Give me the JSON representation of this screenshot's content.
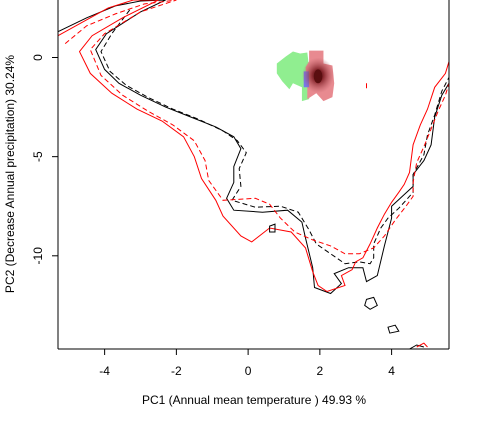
{
  "chart_data": {
    "type": "contour-density",
    "xlabel": "PC1 (Annual mean temperature ) 49.93 %",
    "ylabel": "PC2 (Decrease Annual precipitation) 30.24%",
    "xlim": [
      -5.3,
      5.6
    ],
    "ylim": [
      -14.7,
      2.9
    ],
    "xticks": [
      -4,
      -2,
      0,
      2,
      4
    ],
    "yticks": [
      0,
      -5,
      -10
    ],
    "colors": {
      "black": "#000000",
      "red": "#ff0000",
      "green_patch": "#90ee90",
      "red_patch": "#e88a90",
      "red_dark": "#5a0e10",
      "blue_patch": "#7777ee"
    },
    "series": [
      {
        "style": "solid",
        "color": "black",
        "points": [
          [
            -5.3,
            1.3
          ],
          [
            -4.5,
            2.0
          ],
          [
            -3.7,
            2.6
          ],
          [
            -3.0,
            2.85
          ],
          [
            -2.3,
            2.9
          ],
          [
            -3.0,
            2.3
          ],
          [
            -3.95,
            1.2
          ],
          [
            -4.25,
            0.4
          ],
          [
            -4.0,
            -0.6
          ],
          [
            -3.6,
            -1.3
          ],
          [
            -3.0,
            -1.9
          ],
          [
            -2.3,
            -2.5
          ],
          [
            -1.6,
            -3.0
          ],
          [
            -0.9,
            -3.5
          ],
          [
            -0.4,
            -4.0
          ],
          [
            -0.2,
            -4.6
          ],
          [
            -0.4,
            -5.5
          ],
          [
            -0.4,
            -6.3
          ],
          [
            -0.6,
            -7.1
          ],
          [
            -0.4,
            -7.7
          ],
          [
            0.4,
            -7.8
          ],
          [
            1.1,
            -7.7
          ],
          [
            1.5,
            -8.3
          ],
          [
            1.6,
            -9.1
          ],
          [
            1.8,
            -10.6
          ],
          [
            1.85,
            -11.6
          ],
          [
            2.3,
            -11.9
          ],
          [
            2.6,
            -11.4
          ],
          [
            2.4,
            -10.9
          ],
          [
            2.8,
            -10.6
          ],
          [
            3.2,
            -10.6
          ],
          [
            3.3,
            -11.3
          ],
          [
            3.6,
            -11.0
          ],
          [
            3.8,
            -9.5
          ],
          [
            4.0,
            -8.1
          ],
          [
            4.0,
            -7.5
          ],
          [
            4.3,
            -7.0
          ],
          [
            4.6,
            -6.5
          ],
          [
            4.6,
            -5.9
          ],
          [
            4.9,
            -5.2
          ],
          [
            5.1,
            -4.4
          ],
          [
            5.2,
            -3.0
          ],
          [
            5.4,
            -1.9
          ],
          [
            5.6,
            -1.3
          ]
        ]
      },
      {
        "style": "dashed",
        "color": "black",
        "points": [
          [
            -3.3,
            2.4
          ],
          [
            -3.8,
            1.2
          ],
          [
            -4.1,
            0.3
          ],
          [
            -3.85,
            -0.7
          ],
          [
            -3.4,
            -1.4
          ],
          [
            -2.8,
            -2.0
          ],
          [
            -2.1,
            -2.6
          ],
          [
            -1.4,
            -3.1
          ],
          [
            -0.7,
            -3.7
          ],
          [
            -0.3,
            -4.2
          ],
          [
            -0.05,
            -4.8
          ],
          [
            -0.25,
            -5.6
          ],
          [
            -0.2,
            -6.5
          ],
          [
            -0.45,
            -7.2
          ],
          [
            0.2,
            -7.55
          ],
          [
            0.9,
            -7.5
          ],
          [
            1.4,
            -7.8
          ],
          [
            1.7,
            -8.7
          ],
          [
            1.9,
            -9.4
          ],
          [
            2.3,
            -9.9
          ],
          [
            2.7,
            -10.4
          ],
          [
            3.1,
            -10.3
          ],
          [
            3.4,
            -10.4
          ],
          [
            3.5,
            -10.1
          ],
          [
            3.5,
            -9.4
          ],
          [
            3.7,
            -8.6
          ],
          [
            3.9,
            -8.1
          ],
          [
            4.2,
            -7.6
          ],
          [
            4.4,
            -7.2
          ],
          [
            4.6,
            -6.8
          ],
          [
            4.6,
            -5.9
          ],
          [
            4.9,
            -4.9
          ],
          [
            5.0,
            -3.9
          ],
          [
            5.2,
            -2.9
          ],
          [
            5.4,
            -1.7
          ],
          [
            5.6,
            -1.0
          ]
        ]
      },
      {
        "style": "solid",
        "color": "red",
        "points": [
          [
            -5.3,
            1.1
          ],
          [
            -4.5,
            1.9
          ],
          [
            -3.9,
            2.5
          ],
          [
            -3.2,
            2.9
          ],
          [
            -2.5,
            2.9
          ],
          [
            -3.5,
            2.0
          ],
          [
            -4.35,
            1.1
          ],
          [
            -4.7,
            0.3
          ],
          [
            -4.4,
            -0.8
          ],
          [
            -3.8,
            -1.8
          ],
          [
            -3.1,
            -2.6
          ],
          [
            -2.4,
            -3.2
          ],
          [
            -1.8,
            -4.0
          ],
          [
            -1.5,
            -5.0
          ],
          [
            -1.3,
            -6.1
          ],
          [
            -0.9,
            -7.2
          ],
          [
            -0.7,
            -8.0
          ],
          [
            -0.2,
            -9.0
          ],
          [
            0.1,
            -9.3
          ],
          [
            0.6,
            -8.6
          ],
          [
            1.2,
            -8.8
          ],
          [
            1.6,
            -9.6
          ],
          [
            1.8,
            -10.8
          ],
          [
            1.95,
            -11.5
          ],
          [
            2.2,
            -11.8
          ],
          [
            2.7,
            -11.5
          ],
          [
            2.6,
            -11.0
          ],
          [
            2.9,
            -10.7
          ],
          [
            3.0,
            -10.3
          ],
          [
            3.2,
            -10.1
          ],
          [
            3.4,
            -9.4
          ],
          [
            3.6,
            -8.6
          ],
          [
            3.8,
            -7.9
          ],
          [
            4.0,
            -7.3
          ],
          [
            4.2,
            -6.8
          ],
          [
            4.35,
            -6.4
          ],
          [
            4.5,
            -5.8
          ],
          [
            4.6,
            -4.4
          ],
          [
            4.8,
            -3.4
          ],
          [
            5.0,
            -2.6
          ],
          [
            5.2,
            -1.5
          ],
          [
            5.5,
            -0.8
          ],
          [
            5.6,
            -0.2
          ]
        ]
      },
      {
        "style": "dashed",
        "color": "red",
        "points": [
          [
            -5.1,
            0.7
          ],
          [
            -4.5,
            1.6
          ],
          [
            -3.7,
            2.2
          ],
          [
            -2.9,
            2.7
          ],
          [
            -2.0,
            2.9
          ],
          [
            -3.0,
            2.3
          ],
          [
            -4.0,
            1.2
          ],
          [
            -4.4,
            0.4
          ],
          [
            -4.1,
            -0.9
          ],
          [
            -3.5,
            -1.9
          ],
          [
            -2.8,
            -2.7
          ],
          [
            -2.1,
            -3.4
          ],
          [
            -1.5,
            -4.2
          ],
          [
            -1.2,
            -5.2
          ],
          [
            -1.1,
            -6.2
          ],
          [
            -0.7,
            -7.2
          ],
          [
            0.2,
            -7.1
          ],
          [
            0.6,
            -7.4
          ],
          [
            0.9,
            -8.1
          ],
          [
            1.3,
            -8.8
          ],
          [
            1.8,
            -9.2
          ],
          [
            2.3,
            -9.5
          ],
          [
            2.7,
            -9.9
          ],
          [
            3.1,
            -9.9
          ],
          [
            3.5,
            -9.6
          ],
          [
            3.8,
            -9.0
          ],
          [
            4.1,
            -8.2
          ],
          [
            4.4,
            -7.5
          ],
          [
            4.6,
            -7.0
          ],
          [
            4.6,
            -6.3
          ],
          [
            4.7,
            -5.3
          ],
          [
            4.9,
            -4.5
          ],
          [
            5.1,
            -3.6
          ],
          [
            5.3,
            -2.7
          ],
          [
            5.5,
            -1.9
          ],
          [
            5.6,
            -1.3
          ]
        ]
      }
    ],
    "islands": [
      {
        "color": "black",
        "style": "solid",
        "points": [
          [
            0.6,
            -8.5
          ],
          [
            0.75,
            -8.4
          ],
          [
            0.75,
            -8.8
          ],
          [
            0.6,
            -8.8
          ]
        ]
      },
      {
        "color": "black",
        "style": "solid",
        "points": [
          [
            3.3,
            -12.2
          ],
          [
            3.5,
            -12.1
          ],
          [
            3.6,
            -12.5
          ],
          [
            3.4,
            -12.7
          ],
          [
            3.25,
            -12.5
          ]
        ]
      },
      {
        "color": "black",
        "style": "solid",
        "points": [
          [
            3.9,
            -13.6
          ],
          [
            4.1,
            -13.5
          ],
          [
            4.2,
            -13.8
          ],
          [
            3.95,
            -13.9
          ]
        ]
      },
      {
        "color": "black",
        "style": "solid",
        "points": [
          [
            4.5,
            -14.7
          ],
          [
            4.7,
            -14.5
          ],
          [
            4.9,
            -14.6
          ]
        ]
      },
      {
        "color": "red",
        "style": "dashed",
        "points": [
          [
            3.3,
            -1.3
          ],
          [
            3.3,
            -1.7
          ]
        ]
      },
      {
        "color": "red",
        "style": "solid",
        "points": [
          [
            4.7,
            -14.6
          ],
          [
            4.9,
            -14.4
          ],
          [
            5.0,
            -14.6
          ]
        ]
      }
    ]
  }
}
